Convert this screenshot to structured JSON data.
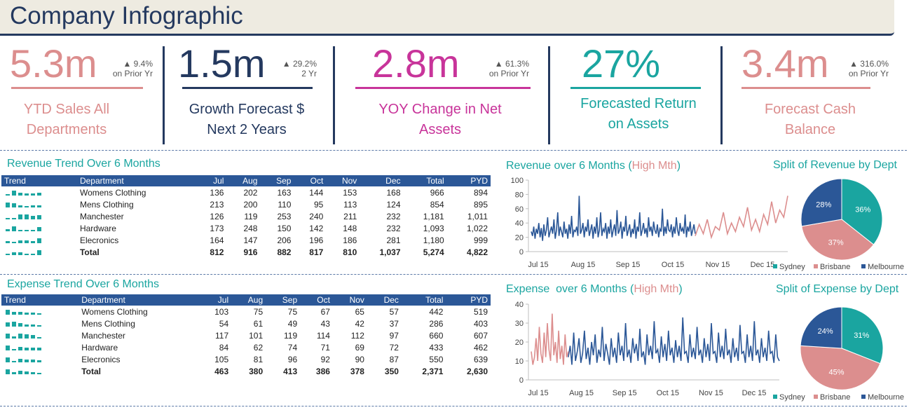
{
  "title": "Company Infographic",
  "kpis": [
    {
      "value": "5.3m",
      "change": "▲ 9.4%",
      "change_sub": "on Prior Yr",
      "label1": "YTD Sales All",
      "label2": "Departments",
      "color": "#dc8e8e"
    },
    {
      "value": "1.5m",
      "change": "▲ 29.2%",
      "change_sub": "2 Yr",
      "label1": "Growth Forecast $",
      "label2": "Next 2 Years",
      "color": "#24395f"
    },
    {
      "value": "2.8m",
      "change": "▲ 61.3%",
      "change_sub": "on Prior Yr",
      "label1": "YOY Change in Net",
      "label2": "Assets",
      "color": "#c8349a"
    },
    {
      "value": "27%",
      "change": "",
      "change_sub": "",
      "label1": "Forecasted Return",
      "label2": "on Assets",
      "color": "#1aa5a0"
    },
    {
      "value": "3.4m",
      "change": "▲ 316.0%",
      "change_sub": "on Prior Yr",
      "label1": "Forecast Cash",
      "label2": "Balance",
      "color": "#dc8e8e"
    }
  ],
  "revenue_table": {
    "title": "Revenue Trend Over 6 Months",
    "headers": [
      "Trend",
      "Department",
      "Jul",
      "Aug",
      "Sep",
      "Oct",
      "Nov",
      "Dec",
      "Total",
      "PYD"
    ],
    "rows": [
      {
        "dept": "Womens Clothing",
        "vals": [
          "136",
          "202",
          "163",
          "144",
          "153",
          "168",
          "966",
          "894"
        ],
        "spark": [
          136,
          202,
          163,
          144,
          153,
          168
        ]
      },
      {
        "dept": "Mens Clothing",
        "vals": [
          "213",
          "200",
          "110",
          "95",
          "113",
          "124",
          "854",
          "895"
        ],
        "spark": [
          213,
          200,
          110,
          95,
          113,
          124
        ]
      },
      {
        "dept": "Manchester",
        "vals": [
          "126",
          "119",
          "253",
          "240",
          "211",
          "232",
          "1,181",
          "1,011"
        ],
        "spark": [
          126,
          119,
          253,
          240,
          211,
          232
        ]
      },
      {
        "dept": "Hardware",
        "vals": [
          "173",
          "248",
          "150",
          "142",
          "148",
          "232",
          "1,093",
          "1,022"
        ],
        "spark": [
          173,
          248,
          150,
          142,
          148,
          232
        ]
      },
      {
        "dept": "Elecronics",
        "vals": [
          "164",
          "147",
          "206",
          "196",
          "186",
          "281",
          "1,180",
          "999"
        ],
        "spark": [
          164,
          147,
          206,
          196,
          186,
          281
        ]
      },
      {
        "dept": "Total",
        "vals": [
          "812",
          "916",
          "882",
          "817",
          "810",
          "1,037",
          "5,274",
          "4,822"
        ],
        "spark": [
          812,
          916,
          882,
          817,
          810,
          1037
        ]
      }
    ]
  },
  "expense_table": {
    "title": "Expense Trend Over 6 Months",
    "headers": [
      "Trend",
      "Department",
      "Jul",
      "Aug",
      "Sep",
      "Oct",
      "Nov",
      "Dec",
      "Total",
      "PYD"
    ],
    "rows": [
      {
        "dept": "Womens Clothing",
        "vals": [
          "103",
          "75",
          "75",
          "67",
          "65",
          "57",
          "442",
          "519"
        ],
        "spark": [
          103,
          75,
          75,
          67,
          65,
          57
        ]
      },
      {
        "dept": "Mens Clothing",
        "vals": [
          "54",
          "61",
          "49",
          "43",
          "42",
          "37",
          "286",
          "403"
        ],
        "spark": [
          54,
          61,
          49,
          43,
          42,
          37
        ]
      },
      {
        "dept": "Manchester",
        "vals": [
          "117",
          "101",
          "119",
          "114",
          "112",
          "97",
          "660",
          "607"
        ],
        "spark": [
          117,
          101,
          119,
          114,
          112,
          97
        ]
      },
      {
        "dept": "Hardware",
        "vals": [
          "84",
          "62",
          "74",
          "71",
          "69",
          "72",
          "433",
          "462"
        ],
        "spark": [
          84,
          62,
          74,
          71,
          69,
          72
        ]
      },
      {
        "dept": "Elecronics",
        "vals": [
          "105",
          "81",
          "96",
          "92",
          "90",
          "87",
          "550",
          "639"
        ],
        "spark": [
          105,
          81,
          96,
          92,
          90,
          87
        ]
      },
      {
        "dept": "Total",
        "vals": [
          "463",
          "380",
          "413",
          "386",
          "378",
          "350",
          "2,371",
          "2,630"
        ],
        "spark": [
          463,
          380,
          413,
          386,
          378,
          350
        ]
      }
    ]
  },
  "chart_data": [
    {
      "type": "line",
      "title": "Revenue over 6 Months",
      "title_highlight": "High Mth",
      "title_suffix": ")",
      "x_ticks": [
        "Jul 15",
        "Aug 15",
        "Sep 15",
        "Oct 15",
        "Nov 15",
        "Dec 15"
      ],
      "ylim": [
        0,
        100
      ],
      "y_ticks": [
        0,
        20,
        40,
        60,
        80,
        100
      ],
      "series": [
        {
          "values": [
            28,
            22,
            35,
            18,
            32,
            25,
            40,
            20,
            33,
            15,
            38,
            22,
            30,
            48,
            20,
            28,
            35,
            25,
            45,
            18,
            30,
            55,
            22,
            35,
            28,
            20,
            42,
            25,
            32,
            18,
            38,
            25,
            50,
            20,
            30,
            28,
            35,
            22,
            78,
            25,
            30,
            40,
            20,
            35,
            28,
            45,
            22,
            30,
            38,
            18,
            35,
            25,
            48,
            20,
            30,
            55,
            22,
            32,
            28,
            40,
            18,
            35,
            25,
            45,
            20,
            30,
            38,
            22,
            58,
            25,
            30,
            42,
            18,
            35,
            28,
            50,
            22,
            30,
            38,
            20,
            32,
            25,
            45,
            18,
            35,
            28,
            55,
            22,
            30,
            40,
            25,
            33,
            20,
            48,
            28,
            35,
            22,
            42,
            30,
            25,
            38,
            20,
            32,
            28,
            60,
            22,
            35,
            25,
            45,
            30,
            28,
            38,
            20,
            35,
            25,
            48,
            30,
            22,
            40,
            28,
            33,
            25,
            52,
            20,
            35,
            28,
            42,
            22,
            30,
            38,
            25
          ]
        },
        {
          "values": [
            22,
            38,
            25,
            45,
            20,
            35,
            30,
            55,
            25,
            40,
            28,
            48,
            35,
            62,
            30,
            45,
            28,
            52,
            38,
            70,
            40,
            58,
            48,
            78
          ]
        }
      ]
    },
    {
      "type": "pie",
      "title": "Split of Revenue by Dept",
      "labels": [
        "Sydney",
        "Brisbane",
        "Melbourne"
      ],
      "values": [
        36,
        37,
        28
      ],
      "slice_labels": [
        "36%",
        "37%",
        "28%"
      ],
      "colors": [
        "#1aa5a0",
        "#dc8e8e",
        "#2b5797"
      ]
    },
    {
      "type": "line",
      "title": "Expense  over 6 Months",
      "title_highlight": "High Mth",
      "title_suffix": ")",
      "x_ticks": [
        "Jul 15",
        "Aug 15",
        "Sep 15",
        "Oct 15",
        "Nov 15",
        "Dec 15"
      ],
      "ylim": [
        0,
        40
      ],
      "y_ticks": [
        0,
        10,
        20,
        30,
        40
      ],
      "series": [
        {
          "values": [
            12,
            18,
            8,
            25,
            10,
            15,
            22,
            9,
            14,
            26,
            11,
            17,
            8,
            20,
            13,
            24,
            9,
            16,
            12,
            28,
            10,
            19,
            14,
            8,
            22,
            12,
            17,
            9,
            25,
            13,
            18,
            10,
            30,
            12,
            16,
            9,
            22,
            14,
            19,
            10,
            27,
            12,
            15,
            8,
            24,
            13,
            18,
            11,
            31,
            14,
            16,
            9,
            23,
            12,
            19,
            10,
            26,
            13,
            17,
            9,
            21,
            12,
            18,
            10,
            33,
            14,
            15,
            9,
            24,
            12,
            17,
            11,
            28,
            13,
            16,
            9,
            22,
            12,
            19,
            10,
            30,
            14,
            15,
            9,
            25,
            12,
            18,
            11,
            27,
            13,
            16,
            9,
            22,
            12,
            17,
            10,
            29,
            14,
            15,
            9,
            24,
            12,
            18,
            10,
            31,
            13,
            16,
            9,
            22,
            12,
            17,
            10,
            26,
            14,
            15,
            9,
            24,
            12,
            10
          ]
        },
        {
          "values": [
            15,
            8,
            12,
            22,
            10,
            28,
            14,
            9,
            25,
            12,
            30,
            16,
            10,
            35,
            13,
            20,
            9,
            26,
            11,
            18,
            8,
            24,
            12,
            15
          ]
        }
      ]
    },
    {
      "type": "pie",
      "title": "Split of Expense by Dept",
      "labels": [
        "Sydney",
        "Brisbane",
        "Melbourne"
      ],
      "values": [
        31,
        45,
        24
      ],
      "slice_labels": [
        "31%",
        "45%",
        "24%"
      ],
      "colors": [
        "#1aa5a0",
        "#dc8e8e",
        "#2b5797"
      ]
    }
  ]
}
